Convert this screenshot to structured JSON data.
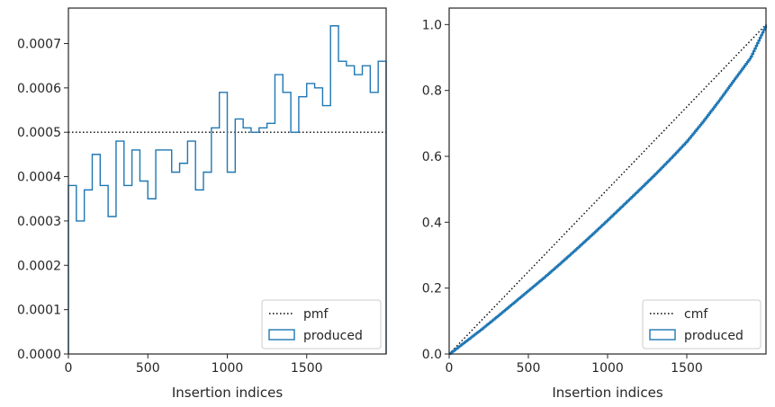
{
  "chart_data": [
    {
      "type": "line",
      "xlabel": "Insertion indices",
      "ylabel": "",
      "xlim": [
        0,
        2000
      ],
      "ylim": [
        0,
        0.00078
      ],
      "xticks": [
        0,
        500,
        1000,
        1500
      ],
      "xtick_labels": [
        "0",
        "500",
        "1000",
        "1500"
      ],
      "yticks": [
        0,
        0.0001,
        0.0002,
        0.0003,
        0.0004,
        0.0005,
        0.0006,
        0.0007
      ],
      "ytick_labels": [
        "0.0000",
        "0.0001",
        "0.0002",
        "0.0003",
        "0.0004",
        "0.0005",
        "0.0006",
        "0.0007"
      ],
      "grid": false,
      "legend_placement": "lower-right",
      "legend": [
        {
          "label": "pmf",
          "style": "dotted",
          "color": "#000000"
        },
        {
          "label": "produced",
          "style": "step-patch",
          "color": "#1f77b4"
        }
      ],
      "series": [
        {
          "name": "pmf",
          "x": [
            0,
            2000
          ],
          "y": [
            0.0005,
            0.0005
          ]
        },
        {
          "name": "produced",
          "bin_width": 50,
          "bin_edges_start": 0,
          "y": [
            0.00038,
            0.0003,
            0.00037,
            0.00045,
            0.00038,
            0.00031,
            0.00048,
            0.00038,
            0.00046,
            0.00039,
            0.00035,
            0.00046,
            0.00046,
            0.00041,
            0.00043,
            0.00048,
            0.00037,
            0.00041,
            0.00051,
            0.00059,
            0.00041,
            0.00053,
            0.00051,
            0.0005,
            0.00051,
            0.00052,
            0.00063,
            0.00059,
            0.0005,
            0.00058,
            0.00061,
            0.0006,
            0.00056,
            0.00074,
            0.00066,
            0.00065,
            0.00063,
            0.00065,
            0.00059,
            0.00066
          ]
        }
      ]
    },
    {
      "type": "line",
      "xlabel": "Insertion indices",
      "ylabel": "",
      "xlim": [
        0,
        2000
      ],
      "ylim": [
        0,
        1.05
      ],
      "xticks": [
        0,
        500,
        1000,
        1500
      ],
      "xtick_labels": [
        "0",
        "500",
        "1000",
        "1500"
      ],
      "yticks": [
        0,
        0.2,
        0.4,
        0.6,
        0.8,
        1.0
      ],
      "ytick_labels": [
        "0.0",
        "0.2",
        "0.4",
        "0.6",
        "0.8",
        "1.0"
      ],
      "grid": false,
      "legend_placement": "lower-right",
      "legend": [
        {
          "label": "cmf",
          "style": "dotted",
          "color": "#000000"
        },
        {
          "label": "produced",
          "style": "step-patch",
          "color": "#1f77b4"
        }
      ],
      "series": [
        {
          "name": "cmf",
          "x": [
            0,
            2000
          ],
          "y": [
            0,
            1.0
          ]
        },
        {
          "name": "produced",
          "x": [
            0,
            100,
            200,
            300,
            400,
            500,
            600,
            700,
            800,
            900,
            1000,
            1100,
            1200,
            1300,
            1400,
            1500,
            1600,
            1700,
            1800,
            1900,
            2000
          ],
          "y": [
            0.0,
            0.037,
            0.074,
            0.113,
            0.153,
            0.193,
            0.233,
            0.275,
            0.318,
            0.362,
            0.407,
            0.453,
            0.499,
            0.546,
            0.595,
            0.646,
            0.705,
            0.768,
            0.834,
            0.899,
            1.0
          ]
        }
      ]
    }
  ],
  "colors": {
    "produced": "#1f77b4",
    "reference": "#000000",
    "axis": "#262626"
  }
}
